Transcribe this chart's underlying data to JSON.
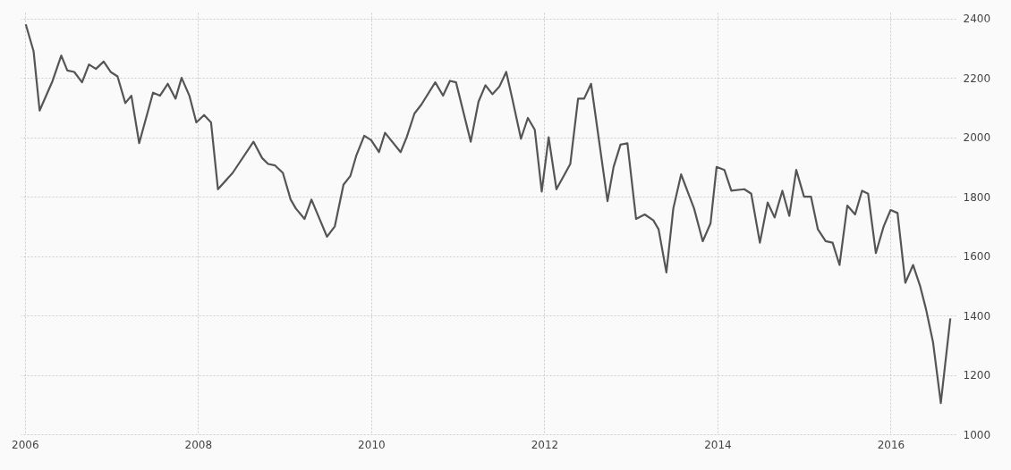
{
  "chart_data": {
    "type": "line",
    "x": [
      2006.01,
      2006.1,
      2006.17,
      2006.32,
      2006.42,
      2006.49,
      2006.57,
      2006.66,
      2006.74,
      2006.82,
      2006.91,
      2006.99,
      2007.07,
      2007.16,
      2007.23,
      2007.32,
      2007.48,
      2007.56,
      2007.65,
      2007.74,
      2007.81,
      2007.9,
      2007.98,
      2008.07,
      2008.15,
      2008.23,
      2008.4,
      2008.64,
      2008.74,
      2008.81,
      2008.89,
      2008.98,
      2009.07,
      2009.13,
      2009.23,
      2009.31,
      2009.49,
      2009.58,
      2009.68,
      2009.76,
      2009.83,
      2009.92,
      2010.0,
      2010.09,
      2010.16,
      2010.34,
      2010.41,
      2010.5,
      2010.58,
      2010.74,
      2010.83,
      2010.91,
      2010.98,
      2011.15,
      2011.24,
      2011.32,
      2011.4,
      2011.48,
      2011.56,
      2011.63,
      2011.73,
      2011.81,
      2011.89,
      2011.97,
      2012.05,
      2012.14,
      2012.3,
      2012.39,
      2012.46,
      2012.54,
      2012.73,
      2012.8,
      2012.88,
      2012.96,
      2013.06,
      2013.16,
      2013.26,
      2013.32,
      2013.41,
      2013.49,
      2013.58,
      2013.73,
      2013.83,
      2013.92,
      2013.99,
      2014.08,
      2014.16,
      2014.31,
      2014.39,
      2014.49,
      2014.58,
      2014.66,
      2014.75,
      2014.83,
      2014.91,
      2015.0,
      2015.08,
      2015.16,
      2015.25,
      2015.33,
      2015.41,
      2015.5,
      2015.59,
      2015.67,
      2015.74,
      2015.83,
      2015.92,
      2016.0,
      2016.08,
      2016.17,
      2016.26,
      2016.34,
      2016.41,
      2016.49,
      2016.58,
      2016.69
    ],
    "series": [
      {
        "color": "#555555",
        "values": [
          2380,
          2290,
          2090,
          2190,
          2275,
          2225,
          2220,
          2185,
          2245,
          2230,
          2255,
          2220,
          2205,
          2115,
          2140,
          1980,
          2150,
          2140,
          2180,
          2130,
          2200,
          2140,
          2050,
          2075,
          2050,
          1825,
          1880,
          1985,
          1930,
          1910,
          1905,
          1880,
          1790,
          1760,
          1725,
          1790,
          1665,
          1700,
          1840,
          1870,
          1940,
          2005,
          1990,
          1950,
          2015,
          1950,
          2000,
          2080,
          2110,
          2185,
          2140,
          2190,
          2185,
          1985,
          2120,
          2175,
          2145,
          2170,
          2220,
          2130,
          1995,
          2065,
          2025,
          1817,
          2000,
          1825,
          1910,
          2130,
          2130,
          2180,
          1785,
          1900,
          1975,
          1980,
          1725,
          1740,
          1720,
          1690,
          1545,
          1760,
          1875,
          1760,
          1650,
          1710,
          1900,
          1890,
          1820,
          1825,
          1810,
          1645,
          1780,
          1730,
          1820,
          1735,
          1890,
          1800,
          1800,
          1690,
          1650,
          1645,
          1570,
          1770,
          1740,
          1820,
          1810,
          1610,
          1700,
          1755,
          1745,
          1510,
          1570,
          1500,
          1420,
          1310,
          1105,
          1390
        ]
      }
    ],
    "xlim": [
      2005.95,
      2016.75
    ],
    "xticks": [
      2006,
      2008,
      2010,
      2012,
      2014,
      2016
    ],
    "ylim": [
      1000,
      2420
    ],
    "yticks": [
      1000,
      1200,
      1400,
      1600,
      1800,
      2000,
      2200,
      2400
    ],
    "grid": true,
    "marker": "none",
    "line_style": "solid"
  }
}
